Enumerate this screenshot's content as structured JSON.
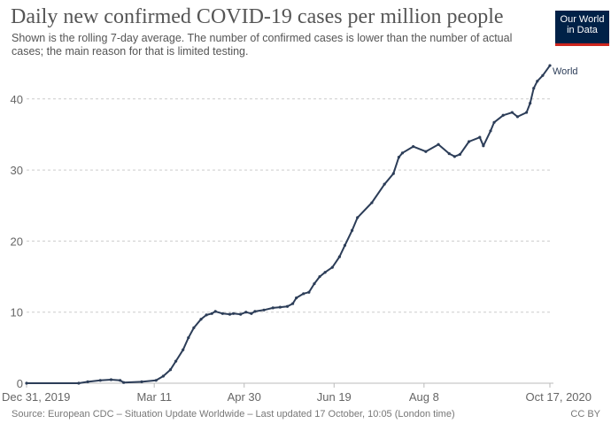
{
  "header": {
    "title": "Daily new confirmed COVID-19 cases per million people",
    "subtitle": "Shown is the rolling 7-day average. The number of confirmed cases is lower than the number of actual cases; the main reason for that is limited testing.",
    "logo_text": "Our World in Data"
  },
  "footer": {
    "source": "Source: European CDC – Situation Update Worldwide – Last updated 17 October, 10:05 (London time)",
    "license": "CC BY"
  },
  "colors": {
    "series": "#2c3d58",
    "logo_bg": "#002147",
    "logo_accent": "#ce261e"
  },
  "chart_data": {
    "type": "line",
    "xlim": [
      "2019-12-31",
      "2020-10-17"
    ],
    "ylim": [
      0,
      45
    ],
    "grid": "horizontal dashed",
    "x_ticks": [
      {
        "date": "2019-12-31",
        "label": "Dec 31, 2019"
      },
      {
        "date": "2020-03-11",
        "label": "Mar 11"
      },
      {
        "date": "2020-04-30",
        "label": "Apr 30"
      },
      {
        "date": "2020-06-19",
        "label": "Jun 19"
      },
      {
        "date": "2020-08-08",
        "label": "Aug 8"
      },
      {
        "date": "2020-10-17",
        "label": "Oct 17, 2020"
      }
    ],
    "y_ticks": [
      0,
      10,
      20,
      30,
      40
    ],
    "series": [
      {
        "name": "World",
        "points": [
          [
            "2019-12-31",
            0
          ],
          [
            "2020-01-29",
            0
          ],
          [
            "2020-02-03",
            0.2
          ],
          [
            "2020-02-10",
            0.4
          ],
          [
            "2020-02-16",
            0.5
          ],
          [
            "2020-02-21",
            0.4
          ],
          [
            "2020-02-23",
            0.1
          ],
          [
            "2020-03-04",
            0.2
          ],
          [
            "2020-03-12",
            0.4
          ],
          [
            "2020-03-16",
            1.0
          ],
          [
            "2020-03-20",
            1.9
          ],
          [
            "2020-03-23",
            3.1
          ],
          [
            "2020-03-27",
            4.7
          ],
          [
            "2020-03-30",
            6.4
          ],
          [
            "2020-04-02",
            7.8
          ],
          [
            "2020-04-06",
            9.0
          ],
          [
            "2020-04-09",
            9.6
          ],
          [
            "2020-04-12",
            9.8
          ],
          [
            "2020-04-14",
            10.1
          ],
          [
            "2020-04-18",
            9.8
          ],
          [
            "2020-04-22",
            9.7
          ],
          [
            "2020-04-24",
            9.8
          ],
          [
            "2020-04-28",
            9.7
          ],
          [
            "2020-05-01",
            10.0
          ],
          [
            "2020-05-04",
            9.8
          ],
          [
            "2020-05-06",
            10.1
          ],
          [
            "2020-05-11",
            10.3
          ],
          [
            "2020-05-16",
            10.6
          ],
          [
            "2020-05-20",
            10.7
          ],
          [
            "2020-05-24",
            10.8
          ],
          [
            "2020-05-27",
            11.2
          ],
          [
            "2020-05-29",
            12.0
          ],
          [
            "2020-06-02",
            12.6
          ],
          [
            "2020-06-05",
            12.8
          ],
          [
            "2020-06-08",
            14.0
          ],
          [
            "2020-06-11",
            15.0
          ],
          [
            "2020-06-14",
            15.6
          ],
          [
            "2020-06-18",
            16.3
          ],
          [
            "2020-06-22",
            17.8
          ],
          [
            "2020-06-25",
            19.4
          ],
          [
            "2020-06-29",
            21.5
          ],
          [
            "2020-07-02",
            23.3
          ],
          [
            "2020-07-10",
            25.4
          ],
          [
            "2020-07-17",
            28.0
          ],
          [
            "2020-07-22",
            29.5
          ],
          [
            "2020-07-25",
            31.8
          ],
          [
            "2020-07-27",
            32.4
          ],
          [
            "2020-08-02",
            33.3
          ],
          [
            "2020-08-09",
            32.6
          ],
          [
            "2020-08-16",
            33.6
          ],
          [
            "2020-08-22",
            32.3
          ],
          [
            "2020-08-25",
            31.9
          ],
          [
            "2020-08-28",
            32.2
          ],
          [
            "2020-09-02",
            34.0
          ],
          [
            "2020-09-08",
            34.6
          ],
          [
            "2020-09-10",
            33.4
          ],
          [
            "2020-09-14",
            35.5
          ],
          [
            "2020-09-16",
            36.7
          ],
          [
            "2020-09-21",
            37.7
          ],
          [
            "2020-09-26",
            38.1
          ],
          [
            "2020-09-29",
            37.5
          ],
          [
            "2020-10-04",
            38.1
          ],
          [
            "2020-10-06",
            39.4
          ],
          [
            "2020-10-08",
            41.5
          ],
          [
            "2020-10-10",
            42.5
          ],
          [
            "2020-10-13",
            43.3
          ],
          [
            "2020-10-17",
            44.7
          ]
        ]
      }
    ]
  }
}
